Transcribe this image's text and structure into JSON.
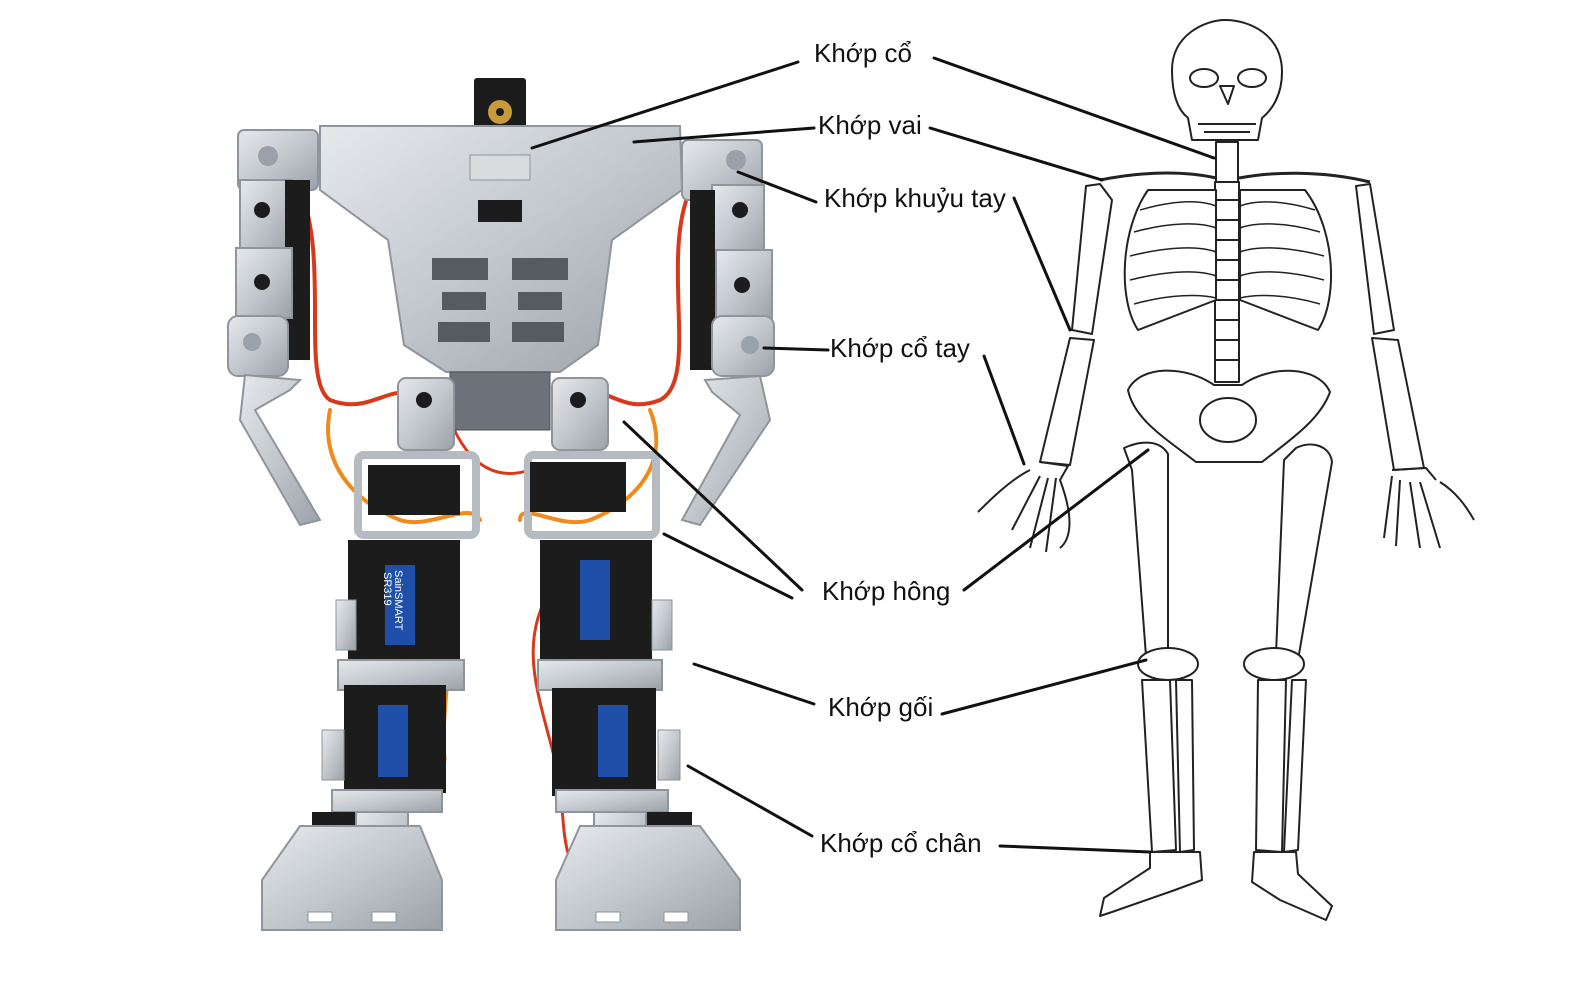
{
  "diagram": {
    "labels": {
      "neck": "Khớp cổ",
      "shoulder": "Khớp vai",
      "elbow": "Khớp khuỷu tay",
      "wrist": "Khớp cổ tay",
      "hip": "Khớp hông",
      "knee": "Khớp gối",
      "ankle": "Khớp cổ chân"
    },
    "servo_text": [
      "SainSMART",
      "SR319"
    ],
    "colors": {
      "leader": "#111111",
      "aluminum": "#c9cdd2",
      "aluminum_dark": "#8e959c",
      "servo": "#1c1c1c",
      "servo_sticker": "#1f4fa8",
      "wire_red": "#d8381c",
      "wire_orange": "#f08a1a",
      "bone_stroke": "#222222",
      "bone_fill": "#ffffff"
    }
  }
}
